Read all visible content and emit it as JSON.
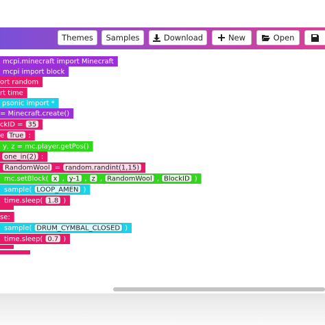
{
  "toolbar": {
    "buttons": [
      "Themes",
      "Samples",
      "Download",
      "New",
      "Open"
    ]
  },
  "blocks": [
    {
      "color": "#9b30d9",
      "parts": [
        {
          "text": "mcpi.minecraft import Minecraft"
        }
      ]
    },
    {
      "color": "#9b30d9",
      "parts": [
        {
          "text": "mcpi import block"
        }
      ]
    },
    {
      "color": "#e8196b",
      "parts": [
        {
          "text": "ort random"
        }
      ]
    },
    {
      "color": "#e8196b",
      "parts": [
        {
          "text": "rt time"
        }
      ]
    },
    {
      "color": "#1ad3e8",
      "parts": [
        {
          "text": "psonic import *"
        }
      ]
    },
    {
      "color": "#9b30d9",
      "parts": [
        {
          "text": "= Minecraft.create()"
        }
      ]
    },
    {
      "color": "#e8196b",
      "parts": [
        {
          "text": "ckID ="
        },
        {
          "field": "35"
        }
      ]
    },
    {
      "color": "#e8196b",
      "parts": [
        {
          "text": "e"
        },
        {
          "field": "True"
        },
        {
          "text": ":"
        }
      ]
    },
    {
      "color": "#32d61d",
      "parts": [
        {
          "text": "y, z = mc.player.getPos()"
        }
      ]
    },
    {
      "color": "#e8196b",
      "parts": [
        {
          "field": "one_in(2)"
        },
        {
          "text": ":"
        }
      ]
    },
    {
      "color": "#e8196b",
      "parts": [
        {
          "field": "RandomWool"
        },
        {
          "text": "="
        },
        {
          "field": "random.randint(1,15)"
        }
      ]
    },
    {
      "color": "#32d61d",
      "parts": [
        {
          "text": "mc.setBlock("
        },
        {
          "field": "x"
        },
        {
          "text": ","
        },
        {
          "field": "y-1"
        },
        {
          "text": ","
        },
        {
          "field": "z"
        },
        {
          "text": ","
        },
        {
          "field": "RandomWool"
        },
        {
          "text": ","
        },
        {
          "field": "BlockID"
        },
        {
          "text": ")"
        }
      ]
    },
    {
      "color": "#1ad3e8",
      "parts": [
        {
          "text": "sample("
        },
        {
          "field": "LOOP_AMEN"
        },
        {
          "text": ")"
        }
      ]
    },
    {
      "color": "#e8196b",
      "parts": [
        {
          "text": "time.sleep("
        },
        {
          "field": "1.8"
        },
        {
          "text": ")"
        }
      ]
    },
    {
      "color": "#e8196b",
      "parts": [
        {
          "text": "se:"
        }
      ]
    },
    {
      "color": "#1ad3e8",
      "parts": [
        {
          "text": "sample("
        },
        {
          "field": "DRUM_CYMBAL_CLOSED"
        },
        {
          "text": ")"
        }
      ]
    },
    {
      "color": "#e8196b",
      "parts": [
        {
          "text": "time.sleep("
        },
        {
          "field": "0.7"
        },
        {
          "text": ")"
        }
      ]
    }
  ]
}
